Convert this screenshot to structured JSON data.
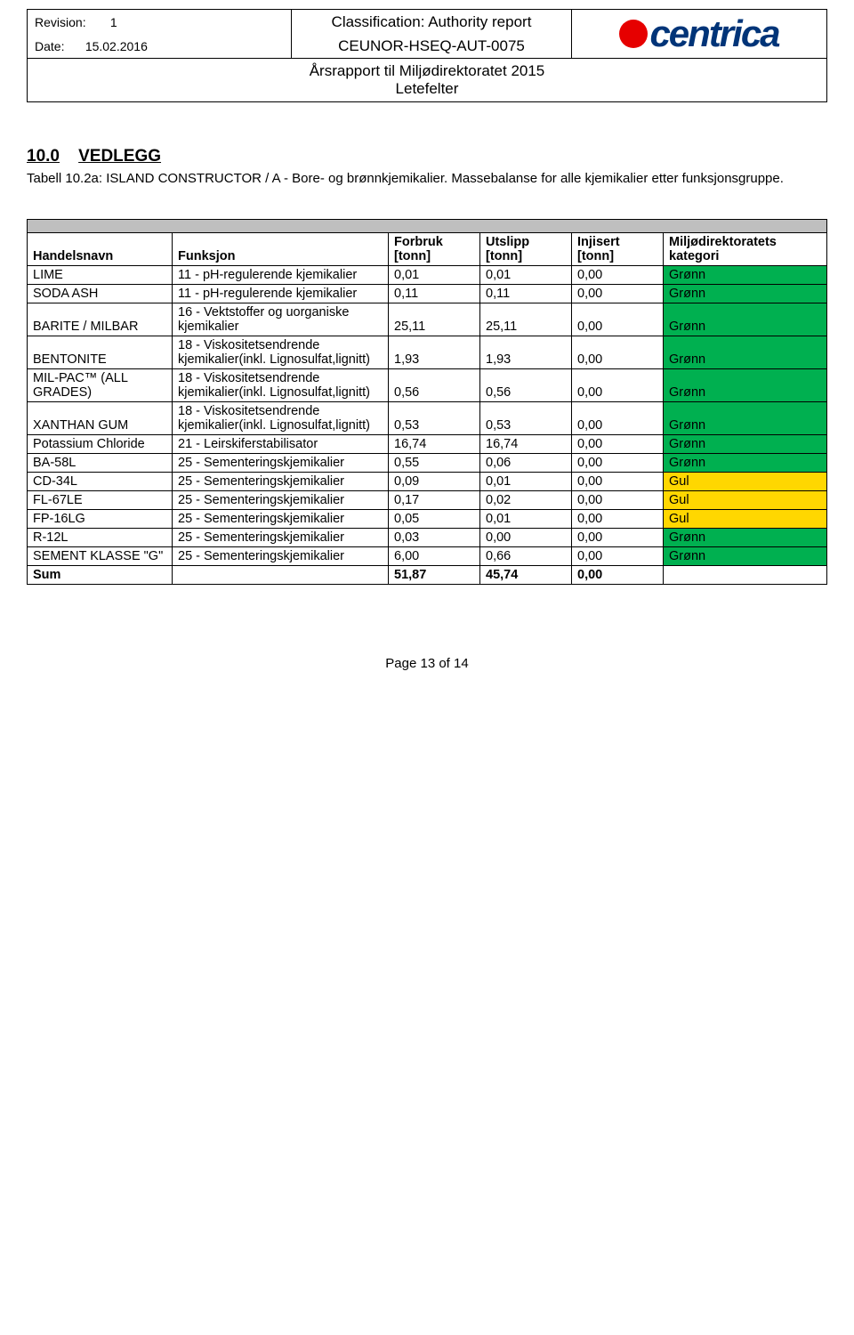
{
  "header": {
    "revision_label": "Revision:",
    "revision_value": "1",
    "date_label": "Date:",
    "date_value": "15.02.2016",
    "classification_label": "Classification: Authority report",
    "doc_code": "CEUNOR-HSEQ-AUT-0075",
    "title_line1": "Årsrapport til Miljødirektoratet 2015",
    "title_line2": "Letefelter",
    "logo_text": "centrica"
  },
  "section": {
    "number": "10.0",
    "title": "VEDLEGG"
  },
  "caption": "Tabell 10.2a: ISLAND CONSTRUCTOR / A - Bore- og brønnkjemikalier. Massebalanse for alle kjemikalier etter funksjonsgruppe.",
  "columns": {
    "c1": "Handelsnavn",
    "c2": "Funksjon",
    "c3": "Forbruk [tonn]",
    "c4": "Utslipp [tonn]",
    "c5": "Injisert [tonn]",
    "c6": "Miljødirektoratets kategori"
  },
  "colors": {
    "green": "#00b050",
    "yellow": "#ffd700",
    "grey": "#bfbfbf"
  },
  "rows": [
    {
      "name": "LIME",
      "func": "11 - pH-regulerende kjemikalier",
      "forbruk": "0,01",
      "utslipp": "0,01",
      "injisert": "0,00",
      "cat": "Grønn",
      "cat_class": "cat-green"
    },
    {
      "name": "SODA ASH",
      "func": "11 - pH-regulerende kjemikalier",
      "forbruk": "0,11",
      "utslipp": "0,11",
      "injisert": "0,00",
      "cat": "Grønn",
      "cat_class": "cat-green"
    },
    {
      "name": "BARITE / MILBAR",
      "func": "16 - Vektstoffer og uorganiske kjemikalier",
      "forbruk": "25,11",
      "utslipp": "25,11",
      "injisert": "0,00",
      "cat": "Grønn",
      "cat_class": "cat-green"
    },
    {
      "name": "BENTONITE",
      "func": "18 - Viskositetsendrende kjemikalier(inkl. Lignosulfat,lignitt)",
      "forbruk": "1,93",
      "utslipp": "1,93",
      "injisert": "0,00",
      "cat": "Grønn",
      "cat_class": "cat-green"
    },
    {
      "name": "MIL-PAC™ (ALL GRADES)",
      "func": "18 - Viskositetsendrende kjemikalier(inkl. Lignosulfat,lignitt)",
      "forbruk": "0,56",
      "utslipp": "0,56",
      "injisert": "0,00",
      "cat": "Grønn",
      "cat_class": "cat-green"
    },
    {
      "name": "XANTHAN GUM",
      "func": "18 - Viskositetsendrende kjemikalier(inkl. Lignosulfat,lignitt)",
      "forbruk": "0,53",
      "utslipp": "0,53",
      "injisert": "0,00",
      "cat": "Grønn",
      "cat_class": "cat-green"
    },
    {
      "name": "Potassium Chloride",
      "func": "21 - Leirskiferstabilisator",
      "forbruk": "16,74",
      "utslipp": "16,74",
      "injisert": "0,00",
      "cat": "Grønn",
      "cat_class": "cat-green"
    },
    {
      "name": "BA-58L",
      "func": "25 - Sementeringskjemikalier",
      "forbruk": "0,55",
      "utslipp": "0,06",
      "injisert": "0,00",
      "cat": "Grønn",
      "cat_class": "cat-green"
    },
    {
      "name": "CD-34L",
      "func": "25 - Sementeringskjemikalier",
      "forbruk": "0,09",
      "utslipp": "0,01",
      "injisert": "0,00",
      "cat": "Gul",
      "cat_class": "cat-yellow"
    },
    {
      "name": "FL-67LE",
      "func": "25 - Sementeringskjemikalier",
      "forbruk": "0,17",
      "utslipp": "0,02",
      "injisert": "0,00",
      "cat": "Gul",
      "cat_class": "cat-yellow"
    },
    {
      "name": "FP-16LG",
      "func": "25 - Sementeringskjemikalier",
      "forbruk": "0,05",
      "utslipp": "0,01",
      "injisert": "0,00",
      "cat": "Gul",
      "cat_class": "cat-yellow"
    },
    {
      "name": "R-12L",
      "func": "25 - Sementeringskjemikalier",
      "forbruk": "0,03",
      "utslipp": "0,00",
      "injisert": "0,00",
      "cat": "Grønn",
      "cat_class": "cat-green"
    },
    {
      "name": "SEMENT KLASSE \"G\"",
      "func": "25 - Sementeringskjemikalier",
      "forbruk": "6,00",
      "utslipp": "0,66",
      "injisert": "0,00",
      "cat": "Grønn",
      "cat_class": "cat-green"
    }
  ],
  "sum": {
    "label": "Sum",
    "forbruk": "51,87",
    "utslipp": "45,74",
    "injisert": "0,00"
  },
  "footer": "Page 13 of 14"
}
